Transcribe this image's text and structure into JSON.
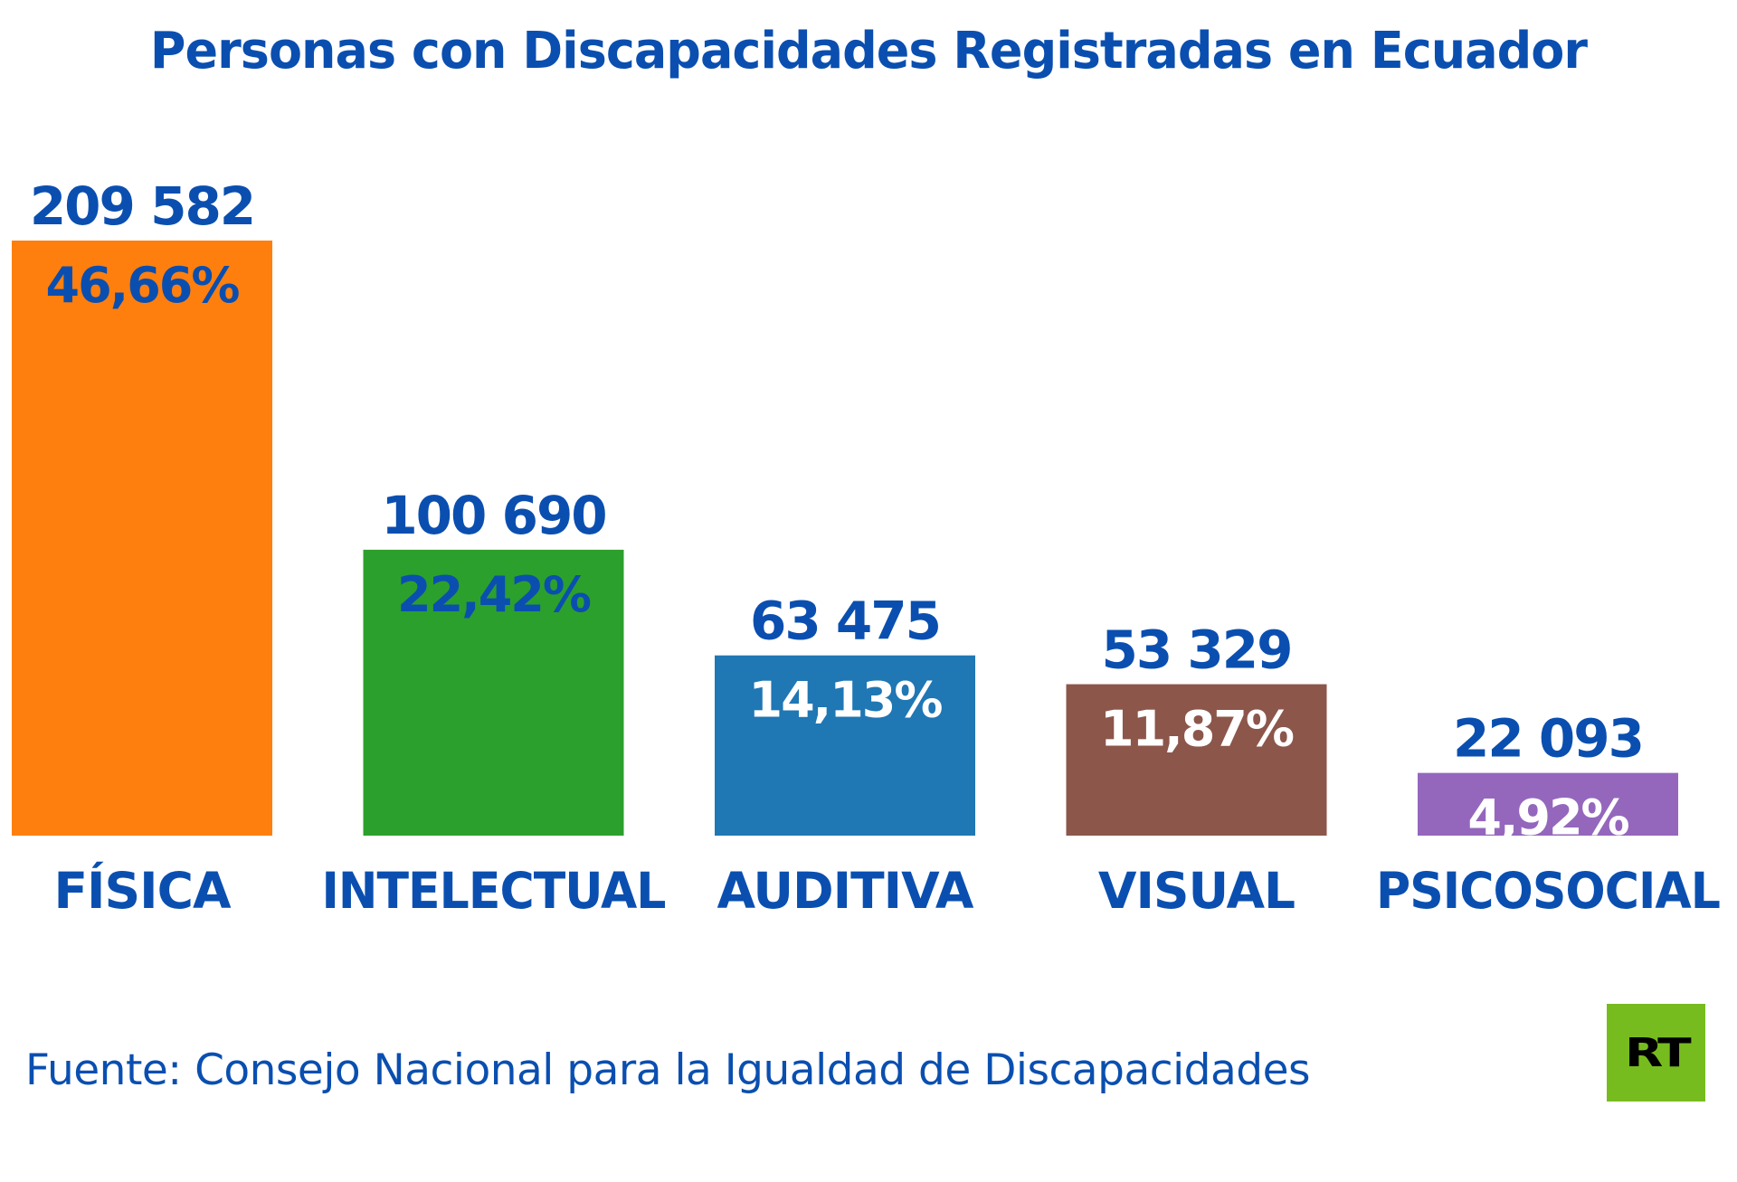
{
  "title": "Personas con Discapacidades Registradas en Ecuador",
  "source": "Fuente: Consejo Nacional para la Igualdad de Discapacidades",
  "logo": {
    "text": "RT",
    "color": "#77bc1f"
  },
  "colors": {
    "text": "#0a4fb0"
  },
  "chart_data": {
    "type": "bar",
    "title": "Personas con Discapacidades Registradas en Ecuador",
    "xlabel": "",
    "ylabel": "",
    "ylim": [
      0,
      209582
    ],
    "grid": false,
    "categories": [
      "FÍSICA",
      "INTELECTUAL",
      "AUDITIVA",
      "VISUAL",
      "PSICOSOCIAL"
    ],
    "values": [
      209582,
      100690,
      63475,
      53329,
      22093
    ],
    "value_labels": [
      "209 582",
      "100 690",
      "63 475",
      "53 329",
      "22 093"
    ],
    "percent_labels": [
      "46,66%",
      "22,42%",
      "14,13%",
      "11,87%",
      "4,92%"
    ],
    "bar_colors": [
      "#ff7f0e",
      "#2ca02c",
      "#1f77b4",
      "#8c564b",
      "#9467bd"
    ],
    "percent_label_colors": [
      "#0a4fb0",
      "#0a4fb0",
      "#ffffff",
      "#ffffff",
      "#ffffff"
    ]
  }
}
